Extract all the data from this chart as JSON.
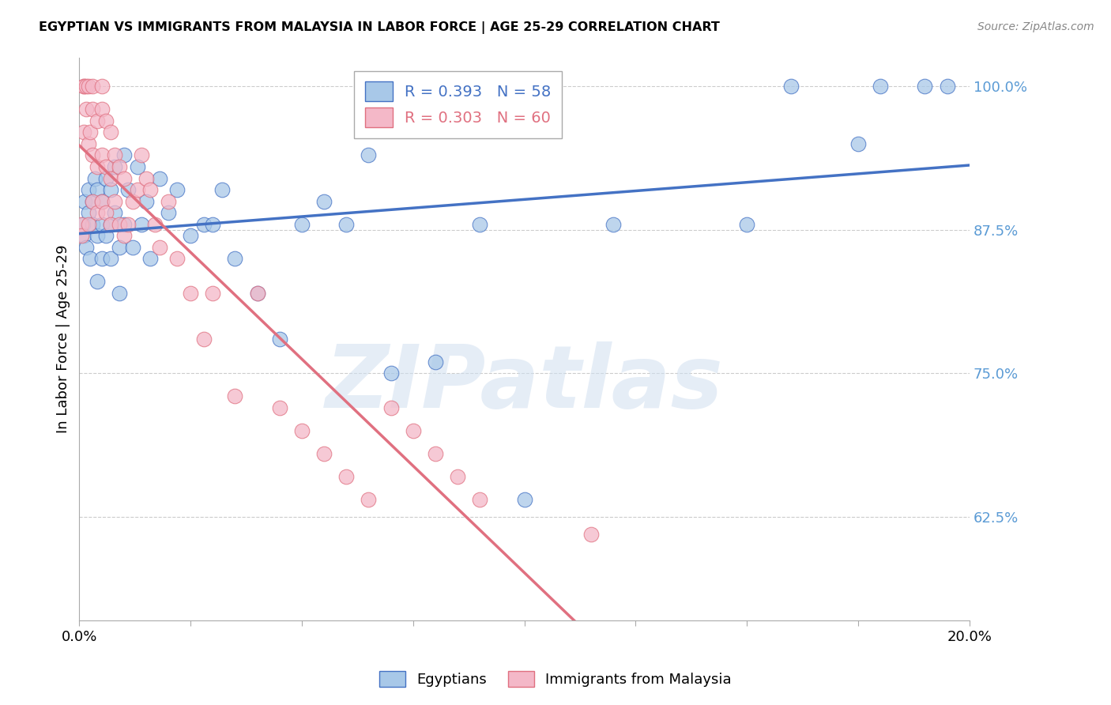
{
  "title": "EGYPTIAN VS IMMIGRANTS FROM MALAYSIA IN LABOR FORCE | AGE 25-29 CORRELATION CHART",
  "source": "Source: ZipAtlas.com",
  "ylabel_label": "In Labor Force | Age 25-29",
  "right_yticks": [
    0.625,
    0.75,
    0.875,
    1.0
  ],
  "right_ytick_labels": [
    "62.5%",
    "75.0%",
    "87.5%",
    "100.0%"
  ],
  "xmin": 0.0,
  "xmax": 0.2,
  "ymin": 0.535,
  "ymax": 1.025,
  "egyptian_color": "#a8c8e8",
  "malaysia_color": "#f4b8c8",
  "egyptian_line_color": "#4472c4",
  "malaysia_line_color": "#e07080",
  "egyptian_R": 0.393,
  "egyptian_N": 58,
  "malaysia_R": 0.303,
  "malaysia_N": 60,
  "watermark": "ZIPatlas",
  "background_color": "#ffffff",
  "grid_color": "#cccccc",
  "right_label_color": "#5b9bd5",
  "egyptian_x": [
    0.0008,
    0.001,
    0.0012,
    0.0015,
    0.002,
    0.002,
    0.0025,
    0.003,
    0.003,
    0.0035,
    0.004,
    0.004,
    0.004,
    0.005,
    0.005,
    0.005,
    0.006,
    0.006,
    0.007,
    0.007,
    0.007,
    0.008,
    0.008,
    0.009,
    0.009,
    0.01,
    0.01,
    0.011,
    0.012,
    0.013,
    0.014,
    0.015,
    0.016,
    0.018,
    0.02,
    0.022,
    0.025,
    0.028,
    0.03,
    0.032,
    0.035,
    0.04,
    0.045,
    0.05,
    0.055,
    0.06,
    0.065,
    0.07,
    0.08,
    0.09,
    0.1,
    0.12,
    0.15,
    0.16,
    0.175,
    0.18,
    0.19,
    0.195
  ],
  "egyptian_y": [
    0.88,
    0.87,
    0.9,
    0.86,
    0.91,
    0.89,
    0.85,
    0.9,
    0.88,
    0.92,
    0.87,
    0.83,
    0.91,
    0.88,
    0.85,
    0.9,
    0.92,
    0.87,
    0.91,
    0.88,
    0.85,
    0.93,
    0.89,
    0.86,
    0.82,
    0.94,
    0.88,
    0.91,
    0.86,
    0.93,
    0.88,
    0.9,
    0.85,
    0.92,
    0.89,
    0.91,
    0.87,
    0.88,
    0.88,
    0.91,
    0.85,
    0.82,
    0.78,
    0.88,
    0.9,
    0.88,
    0.94,
    0.75,
    0.76,
    0.88,
    0.64,
    0.88,
    0.88,
    1.0,
    0.95,
    1.0,
    1.0,
    1.0
  ],
  "malaysia_x": [
    0.0005,
    0.0005,
    0.001,
    0.001,
    0.001,
    0.0015,
    0.0015,
    0.002,
    0.002,
    0.002,
    0.0025,
    0.003,
    0.003,
    0.003,
    0.003,
    0.004,
    0.004,
    0.004,
    0.005,
    0.005,
    0.005,
    0.005,
    0.006,
    0.006,
    0.006,
    0.007,
    0.007,
    0.007,
    0.008,
    0.008,
    0.009,
    0.009,
    0.01,
    0.01,
    0.011,
    0.012,
    0.013,
    0.014,
    0.015,
    0.016,
    0.017,
    0.018,
    0.02,
    0.022,
    0.025,
    0.028,
    0.03,
    0.035,
    0.04,
    0.045,
    0.05,
    0.055,
    0.06,
    0.065,
    0.07,
    0.075,
    0.08,
    0.085,
    0.09,
    0.115
  ],
  "malaysia_y": [
    0.88,
    0.87,
    1.0,
    1.0,
    0.96,
    1.0,
    0.98,
    1.0,
    0.95,
    0.88,
    0.96,
    1.0,
    0.98,
    0.94,
    0.9,
    0.97,
    0.93,
    0.89,
    1.0,
    0.98,
    0.94,
    0.9,
    0.97,
    0.93,
    0.89,
    0.96,
    0.92,
    0.88,
    0.94,
    0.9,
    0.93,
    0.88,
    0.92,
    0.87,
    0.88,
    0.9,
    0.91,
    0.94,
    0.92,
    0.91,
    0.88,
    0.86,
    0.9,
    0.85,
    0.82,
    0.78,
    0.82,
    0.73,
    0.82,
    0.72,
    0.7,
    0.68,
    0.66,
    0.64,
    0.72,
    0.7,
    0.68,
    0.66,
    0.64,
    0.61
  ]
}
